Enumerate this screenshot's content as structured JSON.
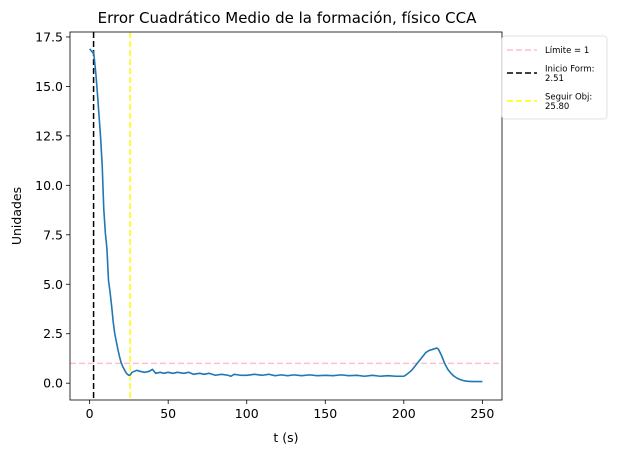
{
  "chart_data": {
    "type": "line",
    "title": "Error Cuadrático Medio de la formación, físico CCA",
    "xlabel": "t (s)",
    "ylabel": "Unidades",
    "xlim": [
      -12.5,
      262.5
    ],
    "ylim": [
      -0.85,
      17.75
    ],
    "xticks": [
      0,
      50,
      100,
      150,
      200,
      250
    ],
    "xtick_labels": [
      "0",
      "50",
      "100",
      "150",
      "200",
      "250"
    ],
    "yticks": [
      0,
      2.5,
      5,
      7.5,
      10,
      12.5,
      15,
      17.5
    ],
    "ytick_labels": [
      "0.0",
      "2.5",
      "5.0",
      "7.5",
      "10.0",
      "12.5",
      "15.0",
      "17.5"
    ],
    "grid": false,
    "legend_position": "outside-top-right",
    "series": [
      {
        "color": "#1f77b4",
        "x": [
          0,
          1,
          2,
          2.5,
          3,
          4,
          5,
          6,
          7,
          8,
          9,
          10,
          11,
          12,
          13,
          14,
          15,
          16,
          17,
          18,
          19,
          20,
          21,
          22,
          23,
          24,
          25,
          25.8,
          27,
          30,
          32,
          35,
          38,
          40,
          42,
          45,
          47,
          50,
          53,
          56,
          60,
          63,
          66,
          70,
          73,
          76,
          80,
          84,
          88,
          90,
          92,
          96,
          100,
          105,
          110,
          114,
          118,
          122,
          126,
          130,
          135,
          140,
          145,
          150,
          155,
          160,
          165,
          170,
          175,
          180,
          185,
          190,
          195,
          200,
          202,
          205,
          208,
          211,
          214,
          216,
          218,
          220,
          221,
          222,
          224,
          226,
          228,
          230,
          232,
          234,
          236,
          238,
          240,
          242,
          245,
          248,
          250
        ],
        "y": [
          16.9,
          16.8,
          16.7,
          16.75,
          16.4,
          15.6,
          14.6,
          13.5,
          12.4,
          11.0,
          8.8,
          7.6,
          6.8,
          5.2,
          4.6,
          3.9,
          3.1,
          2.5,
          2.1,
          1.7,
          1.35,
          1.05,
          0.85,
          0.7,
          0.55,
          0.45,
          0.4,
          0.42,
          0.55,
          0.65,
          0.6,
          0.55,
          0.6,
          0.7,
          0.5,
          0.55,
          0.5,
          0.55,
          0.5,
          0.55,
          0.5,
          0.55,
          0.45,
          0.5,
          0.45,
          0.5,
          0.4,
          0.45,
          0.4,
          0.35,
          0.45,
          0.4,
          0.4,
          0.45,
          0.4,
          0.45,
          0.38,
          0.42,
          0.38,
          0.42,
          0.38,
          0.42,
          0.38,
          0.4,
          0.38,
          0.42,
          0.38,
          0.4,
          0.35,
          0.4,
          0.35,
          0.38,
          0.35,
          0.35,
          0.45,
          0.65,
          0.95,
          1.25,
          1.55,
          1.65,
          1.7,
          1.75,
          1.78,
          1.72,
          1.4,
          1.0,
          0.7,
          0.5,
          0.35,
          0.25,
          0.18,
          0.13,
          0.1,
          0.09,
          0.08,
          0.08,
          0.08
        ]
      }
    ],
    "reference_lines": [
      {
        "orientation": "horizontal",
        "value": 1,
        "color": "#ffc0cb",
        "style": "dashed",
        "legend": "Límite = 1"
      },
      {
        "orientation": "vertical",
        "value": 2.51,
        "color": "#000000",
        "style": "dashed",
        "legend": "Inicio Form: 2.51",
        "legend_lines": [
          "Inicio Form:",
          "2.51"
        ]
      },
      {
        "orientation": "vertical",
        "value": 25.8,
        "color": "#ffff00",
        "style": "dashed",
        "legend": "Seguir Obj: 25.80",
        "legend_lines": [
          "Seguir Obj:",
          "25.80"
        ]
      }
    ]
  }
}
